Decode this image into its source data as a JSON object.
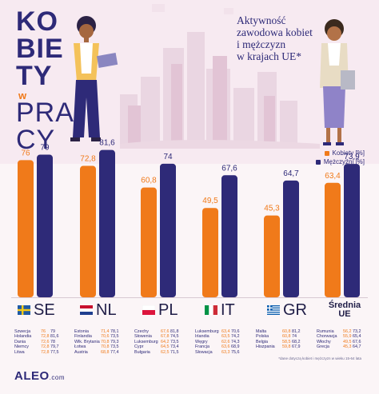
{
  "header": {
    "title_lines": [
      "KO",
      "BIE",
      "TY",
      "PRA",
      "CY"
    ],
    "title_small": "w",
    "subtitle_lines": [
      "Aktywność",
      "zawodowa kobiet",
      "i mężczyzn",
      "w krajach UE*"
    ]
  },
  "legend": {
    "women": "Kobiety [%]",
    "men": "Mężczyźni [%]"
  },
  "colors": {
    "women": "#f07a1a",
    "men": "#2e2a78"
  },
  "chart_data": {
    "type": "bar",
    "categories": [
      "SE",
      "NL",
      "PL",
      "IT",
      "GR",
      "Średnia UE"
    ],
    "series": [
      {
        "name": "Kobiety [%]",
        "values": [
          76,
          72.8,
          60.8,
          49.5,
          45.3,
          63.4
        ]
      },
      {
        "name": "Mężczyźni [%]",
        "values": [
          79,
          81.6,
          74,
          67.6,
          64.7,
          73.9
        ]
      }
    ],
    "value_labels": {
      "women": [
        "76",
        "72,8",
        "60,8",
        "49,5",
        "45,3",
        "63,4"
      ],
      "men": [
        "79",
        "81,6",
        "74",
        "67,6",
        "64,7",
        "73,9"
      ]
    },
    "ylim": [
      0,
      85
    ]
  },
  "countries": [
    {
      "label": "SE",
      "flag": "flag-sweden-icon"
    },
    {
      "label": "NL",
      "flag": "flag-netherlands-icon"
    },
    {
      "label": "PL",
      "flag": "flag-poland-icon"
    },
    {
      "label": "IT",
      "flag": "flag-italy-icon"
    },
    {
      "label": "GR",
      "flag": "flag-greece-icon"
    },
    {
      "label": "Średnia UE",
      "flag": ""
    }
  ],
  "tables": [
    [
      [
        "Szwecja",
        "76",
        "79"
      ],
      [
        "Holandia",
        "72,8",
        "81,6"
      ],
      [
        "Dania",
        "72,6",
        "78"
      ],
      [
        "Niemcy",
        "72,8",
        "79,7"
      ],
      [
        "Litwa",
        "72,8",
        "77,5"
      ]
    ],
    [
      [
        "Estonia",
        "71,4",
        "78,1"
      ],
      [
        "Finlandia",
        "70,6",
        "73,5"
      ],
      [
        "Wlk. Brytania",
        "70,8",
        "79,3"
      ],
      [
        "Łotwa",
        "70,8",
        "73,5"
      ],
      [
        "Austria",
        "68,8",
        "77,4"
      ]
    ],
    [
      [
        "Czechy",
        "67,6",
        "81,8"
      ],
      [
        "Słowenia",
        "67,8",
        "74,5"
      ],
      [
        "Luksemburg",
        "64,2",
        "73,5"
      ],
      [
        "Cypr",
        "64,5",
        "73,4"
      ],
      [
        "Bułgaria",
        "62,5",
        "71,5"
      ]
    ],
    [
      [
        "Luksemburg",
        "63,4",
        "70,6"
      ],
      [
        "Irlandia",
        "63,5",
        "74,2"
      ],
      [
        "Węgry",
        "62,6",
        "74,3"
      ],
      [
        "Francja",
        "63,6",
        "68,9"
      ],
      [
        "Słowacja",
        "63,3",
        "75,6"
      ]
    ],
    [
      [
        "Malta",
        "60,8",
        "81,2"
      ],
      [
        "Polska",
        "60,8",
        "74"
      ],
      [
        "Belgia",
        "58,5",
        "68,2"
      ],
      [
        "Hiszpania",
        "59,8",
        "67,9"
      ]
    ],
    [
      [
        "Rumunia",
        "56,2",
        "73,2"
      ],
      [
        "Chorwacja",
        "55,9",
        "65,4"
      ],
      [
        "Włochy",
        "49,5",
        "67,6"
      ],
      [
        "Grecja",
        "45,3",
        "64,7"
      ]
    ]
  ],
  "footnote": "*dane dotyczą kobiet i mężczyzn w wieku 15-64 lata",
  "logo": {
    "name": "ALEO",
    "suffix": ".com"
  }
}
